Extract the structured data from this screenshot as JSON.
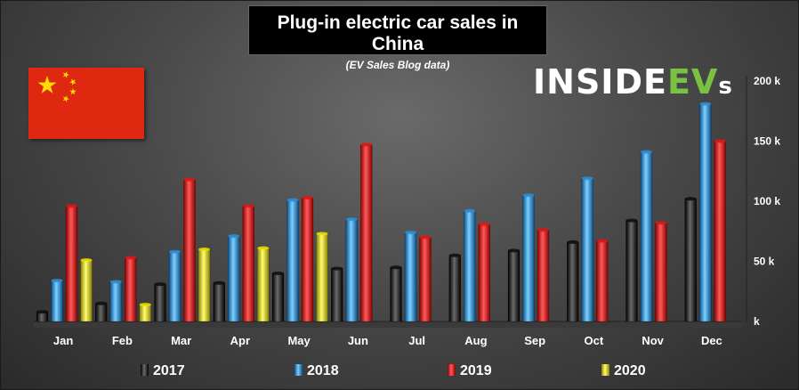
{
  "colors": {
    "2017": "#0d0d0d",
    "2018": "#2c8fd8",
    "2019": "#e01515",
    "2020": "#f0e000"
  },
  "logo": {
    "part1": "INSIDE",
    "part2": "EV",
    "part3": "s"
  },
  "chart_data": {
    "type": "bar",
    "title": "Plug-in electric car sales in China",
    "subtitle": "(EV Sales Blog data)",
    "categories": [
      "Jan",
      "Feb",
      "Mar",
      "Apr",
      "May",
      "Jun",
      "Jul",
      "Aug",
      "Sep",
      "Oct",
      "Nov",
      "Dec"
    ],
    "series": [
      {
        "name": "2017",
        "values": [
          8000,
          15000,
          31000,
          32000,
          40000,
          44000,
          45000,
          55000,
          59000,
          66000,
          84000,
          102000
        ]
      },
      {
        "name": "2018",
        "values": [
          34000,
          33000,
          58000,
          71000,
          101000,
          85000,
          74000,
          92000,
          105000,
          119000,
          141000,
          181000
        ]
      },
      {
        "name": "2019",
        "values": [
          96000,
          53000,
          118000,
          96000,
          103000,
          147000,
          70000,
          81000,
          76000,
          67000,
          82000,
          150000
        ]
      },
      {
        "name": "2020",
        "values": [
          51000,
          14000,
          60000,
          61000,
          73000,
          null,
          null,
          null,
          null,
          null,
          null,
          null
        ]
      }
    ],
    "yaxis": {
      "min": 0,
      "max": 200000,
      "ticks": [
        0,
        50000,
        100000,
        150000,
        200000
      ],
      "tick_labels": [
        "k",
        "50 k",
        "100 k",
        "150 k",
        "200 k"
      ],
      "position": "right"
    },
    "grid": false,
    "legend": "bottom",
    "xlabel": "",
    "ylabel": ""
  }
}
